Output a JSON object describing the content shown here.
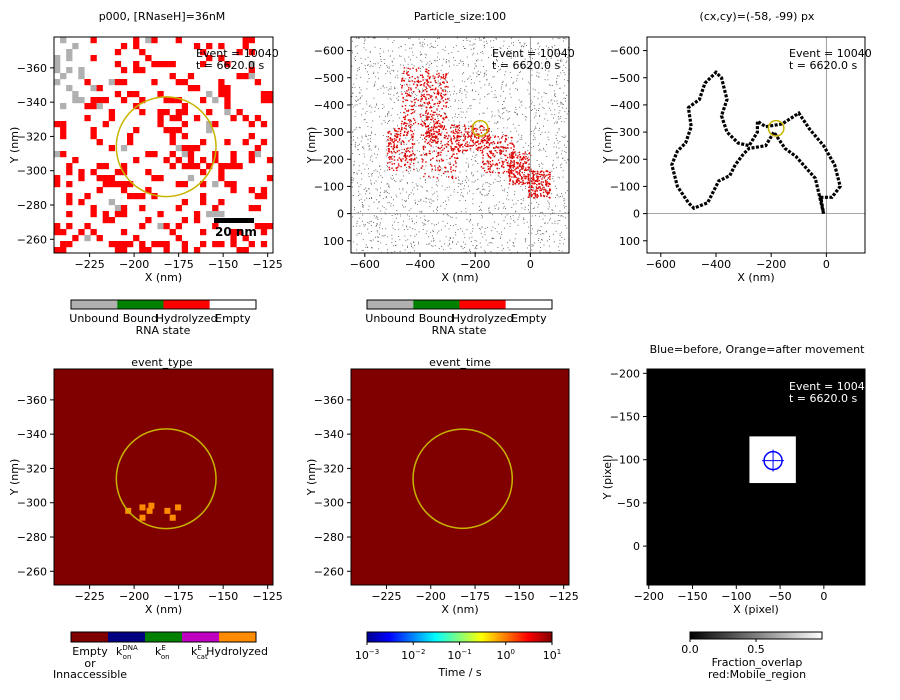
{
  "event_label": "Event = 10040",
  "time_label": "t = 6620.0 s",
  "chart_data": [
    {
      "id": "panel1",
      "type": "heatmap",
      "title": "p000, [RNaseH]=36nM",
      "xlabel": "X (nm)",
      "ylabel": "Y (nm)",
      "xlim": [
        -245,
        -122
      ],
      "ylim": [
        -378,
        -252
      ],
      "y_inverted": true,
      "xticks": [
        -225,
        -200,
        -175,
        -150,
        -125
      ],
      "yticks": [
        -360,
        -340,
        -320,
        -300,
        -280,
        -260
      ],
      "circle": {
        "cx": -182,
        "cy": -314,
        "r": 28,
        "color": "#c8b400"
      },
      "scalebar_label": "20 nm",
      "cells_note": "grid of RNA sites; colors: Unbound gray, Bound green, Hydrolyzed red, Empty white"
    },
    {
      "id": "panel2",
      "type": "scatter",
      "title": "Particle_size:100",
      "xlabel": "X (nm)",
      "ylabel": "Y (nm)",
      "xlim": [
        -650,
        140
      ],
      "ylim": [
        -650,
        145
      ],
      "y_inverted": true,
      "xticks": [
        -600,
        -400,
        -200,
        0
      ],
      "yticks": [
        -600,
        -500,
        -400,
        -300,
        -200,
        -100,
        0,
        100
      ],
      "circle": {
        "cx": -182,
        "cy": -314,
        "r": 28,
        "color": "#c8b400"
      }
    },
    {
      "id": "panel3",
      "type": "line",
      "title": "(cx,cy)=(-58, -99) px",
      "xlabel": "X (nm)",
      "ylabel": "Y (nm)",
      "xlim": [
        -650,
        140
      ],
      "ylim": [
        -650,
        145
      ],
      "y_inverted": true,
      "xticks": [
        -600,
        -400,
        -200,
        0
      ],
      "yticks": [
        -600,
        -500,
        -400,
        -300,
        -200,
        -100,
        0,
        100
      ],
      "circle": {
        "cx": -182,
        "cy": -314,
        "r": 28,
        "color": "#c8b400"
      }
    },
    {
      "id": "panel4",
      "type": "heatmap",
      "title": "event_type",
      "xlabel": "X (nm)",
      "ylabel": "Y (nm)",
      "xlim": [
        -245,
        -122
      ],
      "ylim": [
        -378,
        -252
      ],
      "y_inverted": true,
      "xticks": [
        -225,
        -200,
        -175,
        -150,
        -125
      ],
      "yticks": [
        -360,
        -340,
        -320,
        -300,
        -280,
        -260
      ],
      "circle": {
        "cx": -182,
        "cy": -314,
        "r": 28,
        "color": "#c8b400"
      },
      "background": "#800000",
      "hydrolyzed_cells": [
        [
          -205,
          -297
        ],
        [
          -197,
          -293
        ],
        [
          -193,
          -297
        ],
        [
          -180,
          -293
        ],
        [
          -197,
          -299
        ],
        [
          -192,
          -300
        ],
        [
          -183,
          -297
        ],
        [
          -177,
          -299
        ]
      ]
    },
    {
      "id": "panel5",
      "type": "heatmap",
      "title": "event_time",
      "xlabel": "X (nm)",
      "ylabel": "Y (nm)",
      "xlim": [
        -245,
        -122
      ],
      "ylim": [
        -378,
        -252
      ],
      "y_inverted": true,
      "xticks": [
        -225,
        -200,
        -175,
        -150,
        -125
      ],
      "yticks": [
        -360,
        -340,
        -320,
        -300,
        -280,
        -260
      ],
      "circle": {
        "cx": -182,
        "cy": -314,
        "r": 28,
        "color": "#c8b400"
      },
      "background": "#800000"
    },
    {
      "id": "panel6",
      "type": "heatmap",
      "title": "Blue=before, Orange=after movement",
      "xlabel": "X (pixel)",
      "ylabel": "Y (pixel)",
      "xlim": [
        -202,
        47
      ],
      "ylim": [
        -205,
        45
      ],
      "y_inverted": true,
      "xticks": [
        -200,
        -150,
        -100,
        -50,
        0
      ],
      "yticks": [
        -200,
        -150,
        -100,
        -50,
        0
      ],
      "background": "#000000",
      "white_box": {
        "x": [
          -85,
          -32
        ],
        "y": [
          -127,
          -73
        ]
      },
      "marker": {
        "cx": -58,
        "cy": -99,
        "r": 9,
        "color": "#0000ff"
      }
    }
  ],
  "colorbars": {
    "rna_state": {
      "label": "RNA state",
      "categories": [
        "Unbound",
        "Bound",
        "Hydrolyzed",
        "Empty"
      ],
      "colors": [
        "#b0b0b0",
        "#008000",
        "#ff0000",
        "#ffffff"
      ]
    },
    "event_type": {
      "colors": [
        "#800000",
        "#000080",
        "#008000",
        "#c000c0",
        "#ff8c00"
      ],
      "labels": {
        "empty_1": "Empty",
        "empty_2": "or",
        "empty_3": "Innaccessible",
        "k1_base": "k",
        "k1_sup": "DNA",
        "k1_sub": "on",
        "k2_base": "k",
        "k2_sup": "E",
        "k2_sub": "on",
        "k3_base": "k",
        "k3_sup": "E",
        "k3_sub": "cat",
        "hydrolyzed": "Hydrolyzed"
      }
    },
    "event_time": {
      "label": "Time / s",
      "ticks": [
        {
          "base": "10",
          "exp": "−3"
        },
        {
          "base": "10",
          "exp": "−2"
        },
        {
          "base": "10",
          "exp": "−1"
        },
        {
          "base": "10",
          "exp": "0"
        },
        {
          "base": "10",
          "exp": "1"
        }
      ]
    },
    "overlap": {
      "label1": "Fraction_overlap",
      "label2": "red:Mobile_region",
      "ticks": [
        "0.0",
        "0.5"
      ]
    }
  }
}
